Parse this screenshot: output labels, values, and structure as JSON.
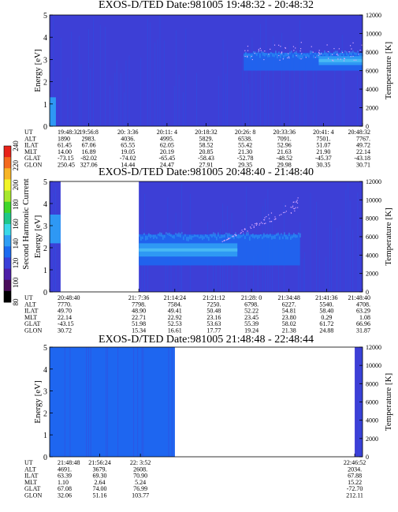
{
  "colors": {
    "background": "#3d3fd6",
    "band_medium": "#1e66f0",
    "band_light": "#2e98f4",
    "band_cyan": "#4fc0f4",
    "stripe": "#2a52e4",
    "dot": "#d8a8ff",
    "colorbar": [
      "#000000",
      "#4a0d5a",
      "#4d1fa8",
      "#3a3fd8",
      "#1c6bf0",
      "#2e9ef5",
      "#39d8e8",
      "#1fc78a",
      "#3fd62a",
      "#a7e82c",
      "#f1f526",
      "#f7b526",
      "#f46a1e",
      "#e8221a"
    ]
  },
  "colorbar": {
    "label": "Second Harmonic Current",
    "ticks": [
      "240",
      "220",
      "200",
      "180",
      "160",
      "140",
      "120",
      "100",
      "80"
    ]
  },
  "chart_data": [
    {
      "type": "heatmap",
      "title": "EXOS-D/TED   Date:981005  19:48:32 - 20:48:32",
      "ylabel": "Energy [eV]",
      "y2label": "Temperature [K]",
      "ylim": [
        0,
        5
      ],
      "y2lim": [
        0,
        12000
      ],
      "yticks": [
        "0",
        "1",
        "2",
        "3",
        "4",
        "5"
      ],
      "y2ticks": [
        "0",
        "2000",
        "4000",
        "6000",
        "8000",
        "10000",
        "12000"
      ],
      "coverage": [
        [
          0.0,
          1.0
        ]
      ],
      "band": {
        "x_start": 0.62,
        "x_end": 1.0,
        "e_low": 2.5,
        "e_high": 3.3
      },
      "band_peak": {
        "x_start": 0.86,
        "x_end": 1.0,
        "e_low": 2.75,
        "e_high": 3.15
      },
      "spike": {
        "x_start": 0.0,
        "x_end": 0.02,
        "e_low": 0.0,
        "e_high": 1.3
      },
      "temperature_points": {
        "x_start": 0.62,
        "x_end": 1.0,
        "t_low": 6500,
        "t_high": 9800
      },
      "ephemeris_labels": [
        "UT",
        "ALT",
        "ILAT",
        "MLT",
        "GLAT",
        "GLON"
      ],
      "ephemeris": [
        {
          "x": 0.0,
          "values": [
            "19:48:32",
            "1890",
            "61.45",
            "14.00",
            "-73.15",
            "250.45"
          ]
        },
        {
          "x": 0.125,
          "values": [
            "19:56:8",
            "2983.",
            "67.06",
            "16.89",
            "-82.02",
            "327.06"
          ]
        },
        {
          "x": 0.25,
          "values": [
            "20: 3:36",
            "4036.",
            "65.55",
            "19.05",
            "-74.02",
            "14.44"
          ]
        },
        {
          "x": 0.375,
          "values": [
            "20:11: 4",
            "4995.",
            "62.05",
            "20.19",
            "-65.45",
            "24.47"
          ]
        },
        {
          "x": 0.5,
          "values": [
            "20:18:32",
            "5829.",
            "58.52",
            "20.85",
            "-58.43",
            "27.91"
          ]
        },
        {
          "x": 0.625,
          "values": [
            "20:26: 8",
            "6538.",
            "55.42",
            "21.30",
            "-52.78",
            "29.35"
          ]
        },
        {
          "x": 0.75,
          "values": [
            "20:33:36",
            "7091.",
            "52.96",
            "21.63",
            "-48.52",
            "29.98"
          ]
        },
        {
          "x": 0.875,
          "values": [
            "20:41: 4",
            "7501.",
            "51.07",
            "21.90",
            "-45.37",
            "30.35"
          ]
        },
        {
          "x": 1.0,
          "values": [
            "20:48:32",
            "7767.",
            "49.72",
            "22.14",
            "-43.18",
            "30.71"
          ]
        }
      ]
    },
    {
      "type": "heatmap",
      "title": "EXOS-D/TED   Date:981005  20:48:40 - 21:48:40",
      "ylabel": "Energy [eV]",
      "y2label": "Temperature [K]",
      "ylim": [
        0,
        5
      ],
      "y2lim": [
        0,
        12000
      ],
      "yticks": [
        "0",
        "1",
        "2",
        "3",
        "4",
        "5"
      ],
      "y2ticks": [
        "0",
        "2000",
        "4000",
        "6000",
        "8000",
        "10000",
        "12000"
      ],
      "coverage": [
        [
          0.0,
          0.035
        ],
        [
          0.285,
          1.0
        ]
      ],
      "band": {
        "x_start": 0.285,
        "x_end": 0.8,
        "e_low": 1.2,
        "e_high": 2.6
      },
      "band_peak": {
        "x_start": 0.285,
        "x_end": 0.6,
        "e_low": 1.6,
        "e_high": 2.2
      },
      "spike": {
        "x_start": 0.0,
        "x_end": 0.035,
        "e_low": 2.2,
        "e_high": 3.5
      },
      "temperature_points": {
        "x_start": 0.55,
        "x_end": 0.8,
        "t_low": 5500,
        "t_high": 10500
      },
      "ephemeris_labels": [
        "UT",
        "ALT",
        "ILAT",
        "MLT",
        "GLAT",
        "GLON"
      ],
      "ephemeris": [
        {
          "x": 0.0,
          "values": [
            "20:48:40",
            "7770.",
            "49.70",
            "22.14",
            "-43.15",
            "30.72"
          ]
        },
        {
          "x": 0.285,
          "values": [
            "21: 7:36",
            "7798.",
            "48.90",
            "22.71",
            "51.98",
            "15.34"
          ]
        },
        {
          "x": 0.4,
          "values": [
            "21:14:24",
            "7584.",
            "49.41",
            "22.92",
            "52.53",
            "16.61"
          ]
        },
        {
          "x": 0.525,
          "values": [
            "21:21:12",
            "7250.",
            "50.48",
            "23.16",
            "53.63",
            "17.77"
          ]
        },
        {
          "x": 0.645,
          "values": [
            "21:28: 0",
            "6798.",
            "52.22",
            "23.45",
            "55.39",
            "19.24"
          ]
        },
        {
          "x": 0.765,
          "values": [
            "21:34:48",
            "6227.",
            "54.81",
            "23.80",
            "58.02",
            "21.38"
          ]
        },
        {
          "x": 0.885,
          "values": [
            "21:41:36",
            "5540.",
            "58.40",
            "0.29",
            "61.72",
            "24.88"
          ]
        },
        {
          "x": 1.0,
          "values": [
            "21:48:40",
            "4708.",
            "63.29",
            "1.08",
            "66.96",
            "31.87"
          ]
        }
      ]
    },
    {
      "type": "heatmap",
      "title": "EXOS-D/TED   Date:981005  21:48:48 - 22:48:44",
      "ylabel": "Energy [eV]",
      "y2label": "Temperature [K]",
      "ylim": [
        0,
        5
      ],
      "y2lim": [
        0,
        12000
      ],
      "yticks": [
        "0",
        "1",
        "2",
        "3",
        "4",
        "5"
      ],
      "y2ticks": [
        "0",
        "2000",
        "4000",
        "6000",
        "8000",
        "10000",
        "12000"
      ],
      "coverage": [
        [
          0.0,
          0.4
        ],
        [
          0.975,
          1.0
        ]
      ],
      "band": {
        "x_start": 0.0,
        "x_end": 0.4,
        "e_low": 0.0,
        "e_high": 5.0
      },
      "band_peak": null,
      "spike": null,
      "temperature_points": null,
      "ephemeris_labels": [
        "UT",
        "ALT",
        "ILAT",
        "MLT",
        "GLAT",
        "GLON"
      ],
      "ephemeris": [
        {
          "x": 0.0,
          "values": [
            "21:48:48",
            "4691.",
            "63.39",
            "1.10",
            "67.08",
            "32.06"
          ]
        },
        {
          "x": 0.16,
          "values": [
            "21:56:24",
            "3679.",
            "69.30",
            "2.64",
            "74.00",
            "51.16"
          ]
        },
        {
          "x": 0.29,
          "values": [
            "22: 3:52",
            "2608.",
            "70.90",
            "5.24",
            "76.99",
            "103.77"
          ]
        },
        {
          "x": 0.975,
          "values": [
            "22:46:52",
            "2034.",
            "67.88",
            "15.22",
            "-72.70",
            "212.11"
          ]
        }
      ]
    }
  ]
}
